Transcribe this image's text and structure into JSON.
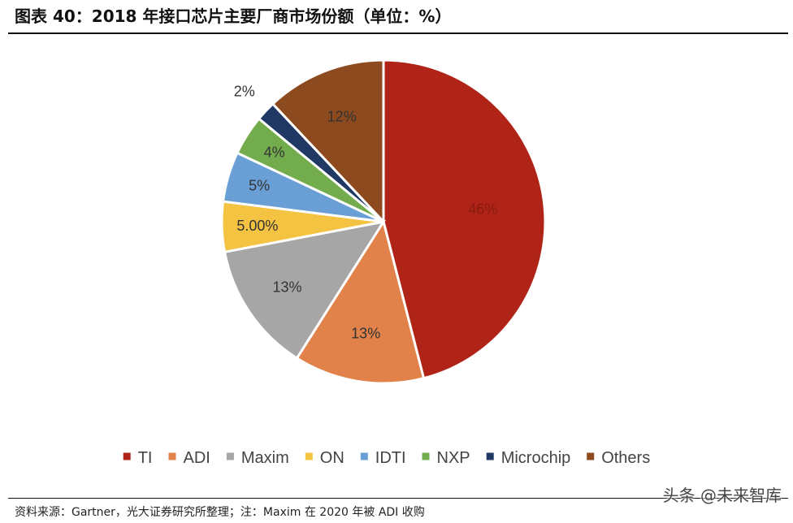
{
  "header": {
    "title": "图表 40：2018 年接口芯片主要厂商市场份额（单位：%）"
  },
  "chart_data": {
    "type": "pie",
    "title": "图表 40：2018 年接口芯片主要厂商市场份额（单位：%）",
    "legend_position": "bottom",
    "slices": [
      {
        "label": "TI",
        "value": 46,
        "display": "46%",
        "color": "#b02418"
      },
      {
        "label": "ADI",
        "value": 13,
        "display": "13%",
        "color": "#e0824a"
      },
      {
        "label": "Maxim",
        "value": 13,
        "display": "13%",
        "color": "#a6a6a6"
      },
      {
        "label": "ON",
        "value": 5,
        "display": "5.00%",
        "color": "#f4c342"
      },
      {
        "label": "IDTI",
        "value": 5,
        "display": "5%",
        "color": "#6a9fd6"
      },
      {
        "label": "NXP",
        "value": 4,
        "display": "4%",
        "color": "#72ac4d"
      },
      {
        "label": "Microchip",
        "value": 2,
        "display": "2%",
        "color": "#1f3864"
      },
      {
        "label": "Others",
        "value": 12,
        "display": "12%",
        "color": "#8c4a1e"
      }
    ]
  },
  "footer": {
    "source": "资料来源：Gartner，光大证券研究所整理；注：Maxim 在 2020 年被 ADI 收购",
    "watermark": "头条 @未来智库"
  }
}
